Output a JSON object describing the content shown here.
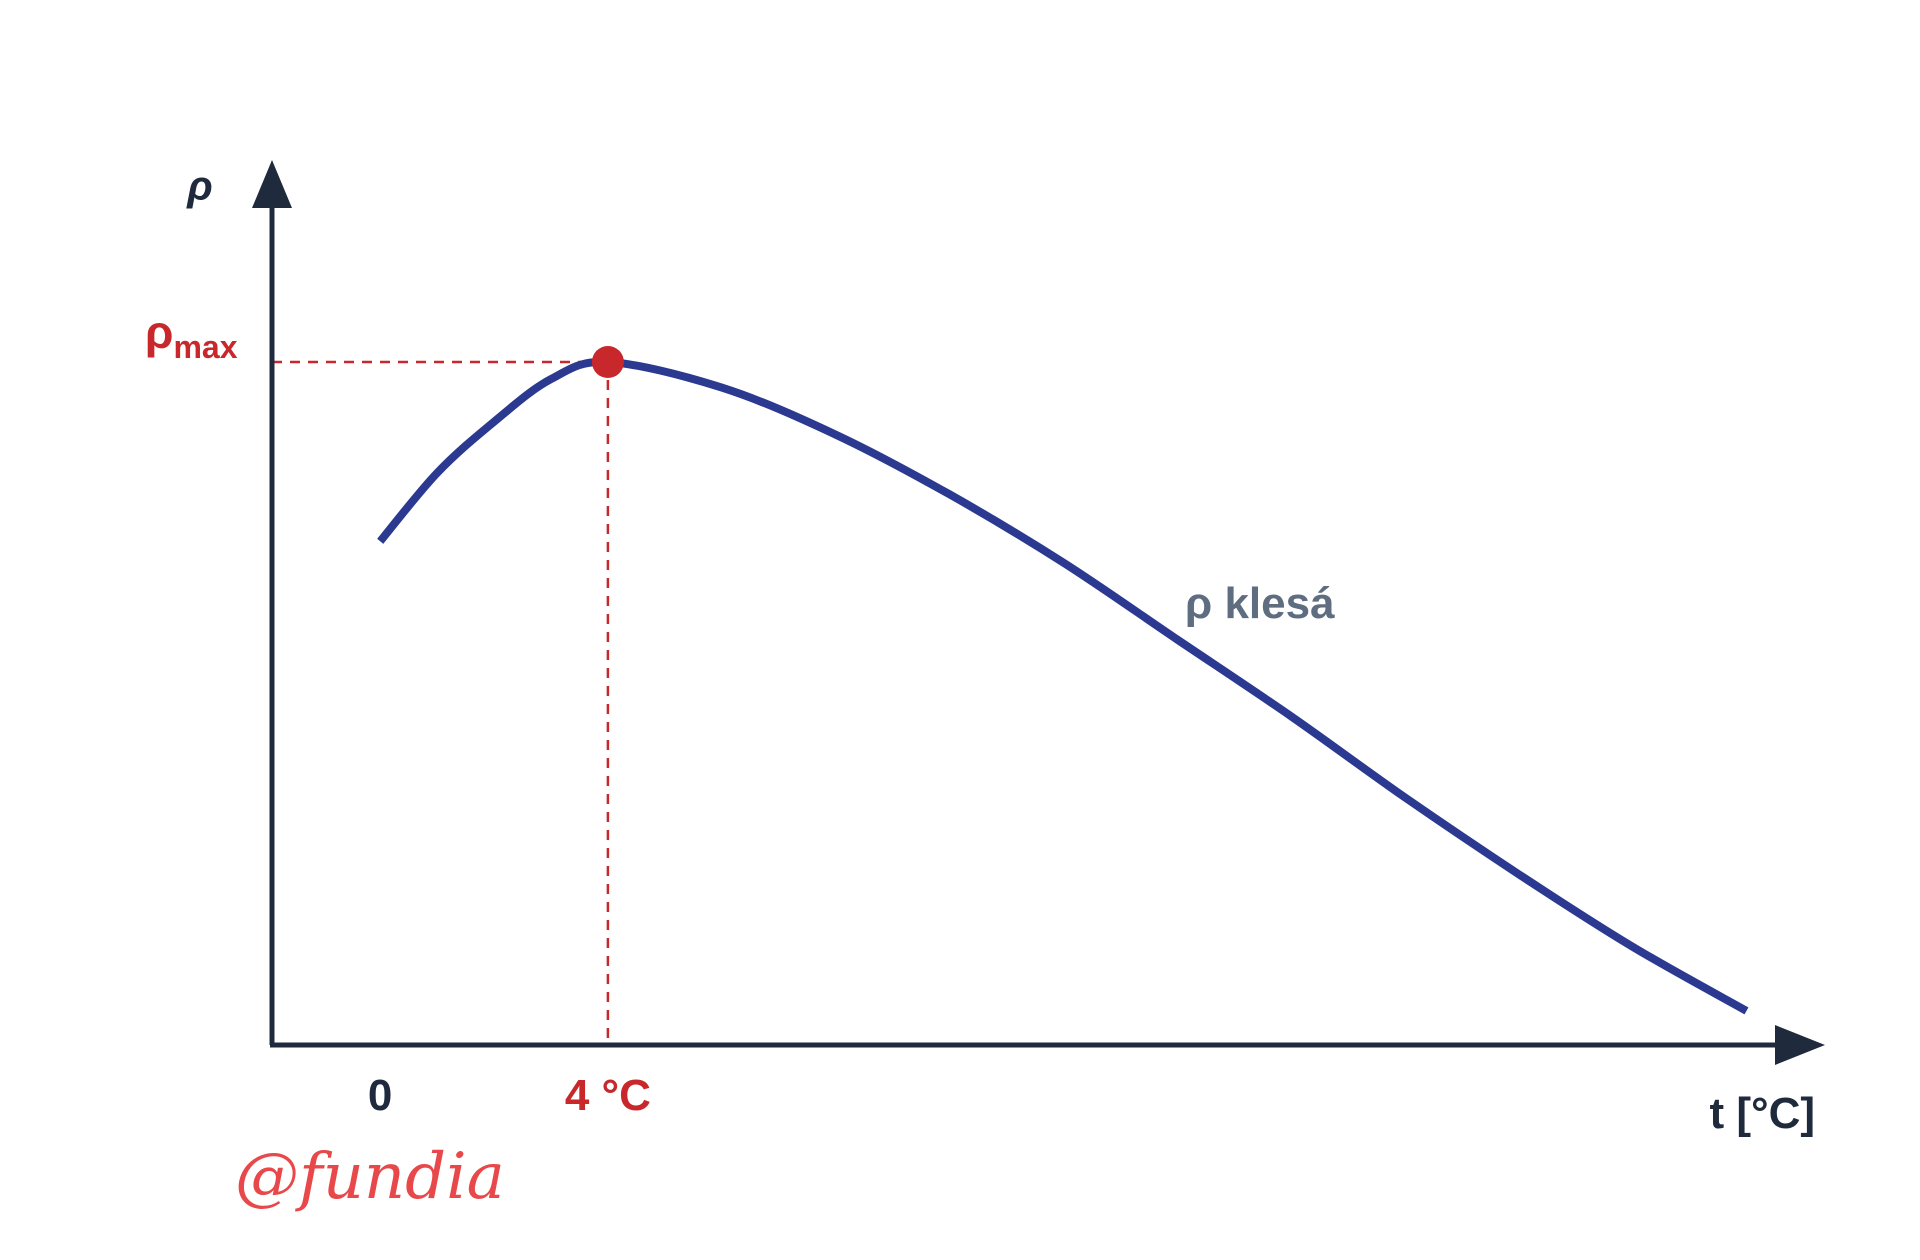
{
  "chart_data": {
    "type": "line",
    "title": "",
    "xlabel": "t [°C]",
    "ylabel": "ρ",
    "x_ticks": [
      {
        "value": 0,
        "label": "0"
      },
      {
        "value": 4,
        "label": "4 °C"
      }
    ],
    "y_ticks": [
      {
        "value": "max",
        "label": "ρ",
        "label_sub": "max"
      }
    ],
    "annotations": [
      {
        "text": "ρ klesá"
      }
    ],
    "maximum": {
      "x": 4,
      "y": "ρmax"
    },
    "series": [
      {
        "x": [
          0,
          1,
          2,
          3,
          4,
          6,
          8,
          10,
          12,
          14,
          16,
          18,
          20,
          22,
          24
        ],
        "y": [
          0.79,
          0.87,
          0.93,
          0.98,
          1.0,
          0.97,
          0.915,
          0.845,
          0.765,
          0.675,
          0.585,
          0.49,
          0.4,
          0.315,
          0.24
        ]
      }
    ],
    "xlim": [
      -1.9,
      24.5
    ],
    "ylim": [
      0.2,
      1.0
    ],
    "grid": false,
    "legend": "none"
  },
  "colors": {
    "axis": "#1f2a3d",
    "curve": "#2b3990",
    "highlight": "#c8282c",
    "annotation": "#5f6d80",
    "watermark": "#e8484a"
  },
  "watermark": {
    "text": "@fundia"
  }
}
